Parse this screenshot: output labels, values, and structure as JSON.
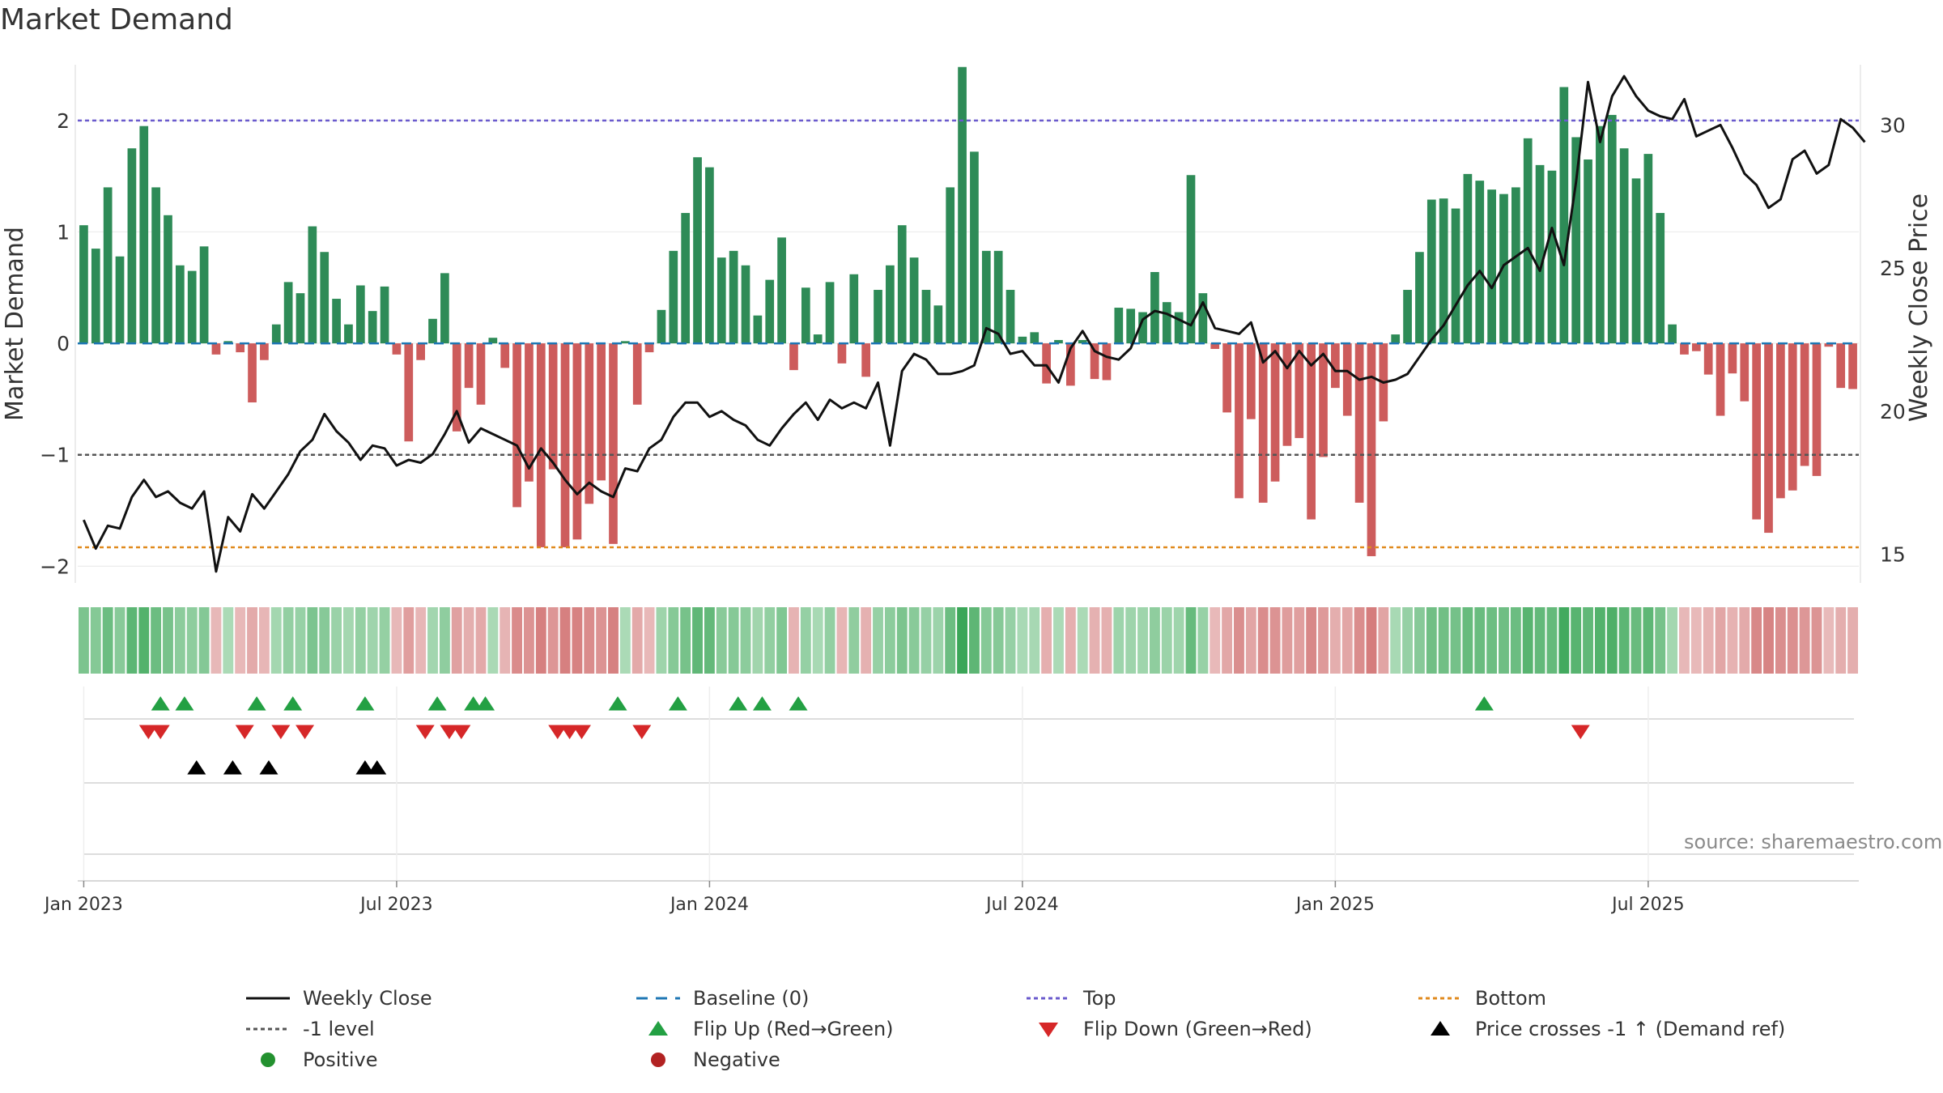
{
  "title": "Market Demand",
  "source": "source: sharemaestro.com",
  "colors": {
    "pos_bar": "#2e8b57",
    "neg_bar": "#cd5c5c",
    "close_line": "#111111",
    "baseline": "#1f77b4",
    "top": "#6a5acd",
    "minus1": "#555555",
    "bottom": "#e08a1e",
    "flip_up": "#23a043",
    "flip_down": "#d62728",
    "cross": "#000000",
    "positive_dot": "#23912f",
    "negative_dot": "#b22222"
  },
  "legend": [
    {
      "label": "Weekly Close",
      "icon": "solid-line-black"
    },
    {
      "label": "Baseline (0)",
      "icon": "dashed-line-blue"
    },
    {
      "label": "Top",
      "icon": "dotted-line-purple"
    },
    {
      "label": "Bottom",
      "icon": "dotted-line-orange"
    },
    {
      "label": "-1 level",
      "icon": "dotted-line-gray"
    },
    {
      "label": "Flip Up (Red→Green)",
      "icon": "triangle-up-green"
    },
    {
      "label": "Flip Down (Green→Red)",
      "icon": "triangle-down-red"
    },
    {
      "label": "Price crosses -1 ↑ (Demand ref)",
      "icon": "triangle-up-black"
    },
    {
      "label": "Positive",
      "icon": "dot-green"
    },
    {
      "label": "Negative",
      "icon": "dot-red"
    }
  ],
  "chart_data": {
    "type": "bar",
    "title": "Market Demand",
    "ylabel": "Market Demand",
    "y2label": "Weekly Close Price",
    "ylim": [
      -2.15,
      2.5
    ],
    "y2lim": [
      14,
      32.1
    ],
    "yticks": [
      "2",
      "1",
      "0",
      "−1",
      "−2"
    ],
    "y2ticks": [
      "30",
      "25",
      "20",
      "15"
    ],
    "xticks": [
      {
        "label": "Jan 2023",
        "week": 1
      },
      {
        "label": "Jul 2023",
        "week": 27
      },
      {
        "label": "Jan 2024",
        "week": 53
      },
      {
        "label": "Jul 2024",
        "week": 79
      },
      {
        "label": "Jan 2025",
        "week": 105
      },
      {
        "label": "Jul 2025",
        "week": 131
      }
    ],
    "reference_lines": {
      "top": 2.0,
      "minus1": -1.0,
      "bottom": -1.83,
      "baseline": 0
    },
    "demand": [
      1.06,
      0.85,
      1.4,
      0.78,
      1.75,
      1.95,
      1.4,
      1.15,
      0.7,
      0.65,
      0.87,
      -0.1,
      0.02,
      -0.08,
      -0.53,
      -0.15,
      0.17,
      0.55,
      0.45,
      1.05,
      0.82,
      0.4,
      0.17,
      0.52,
      0.29,
      0.51,
      -0.1,
      -0.88,
      -0.15,
      0.22,
      0.63,
      -0.79,
      -0.4,
      -0.55,
      0.05,
      -0.22,
      -1.47,
      -1.24,
      -1.83,
      -1.13,
      -1.83,
      -1.76,
      -1.44,
      -1.23,
      -1.8,
      0.02,
      -0.55,
      -0.08,
      0.3,
      0.83,
      1.17,
      1.67,
      1.58,
      0.77,
      0.83,
      0.7,
      0.25,
      0.57,
      0.95,
      -0.24,
      0.5,
      0.08,
      0.55,
      -0.18,
      0.62,
      -0.3,
      0.48,
      0.7,
      1.06,
      0.77,
      0.48,
      0.34,
      1.4,
      2.48,
      1.72,
      0.83,
      0.83,
      0.48,
      0.06,
      0.1,
      -0.36,
      0.03,
      -0.38,
      0.03,
      -0.32,
      -0.33,
      0.32,
      0.31,
      0.28,
      0.64,
      0.37,
      0.28,
      1.51,
      0.45,
      -0.05,
      -0.62,
      -1.39,
      -0.68,
      -1.43,
      -1.24,
      -0.92,
      -0.85,
      -1.58,
      -1.02,
      -0.4,
      -0.65,
      -1.43,
      -1.91,
      -0.7,
      0.08,
      0.48,
      0.82,
      1.29,
      1.3,
      1.21,
      1.52,
      1.46,
      1.38,
      1.34,
      1.4,
      1.84,
      1.6,
      1.55,
      2.3,
      1.85,
      1.65,
      1.95,
      2.05,
      1.75,
      1.48,
      1.7,
      1.17,
      0.17,
      -0.1,
      -0.07,
      -0.28,
      -0.65,
      -0.27,
      -0.52,
      -1.58,
      -1.7,
      -1.39,
      -1.32,
      -1.1,
      -1.19,
      -0.03,
      -0.4,
      -0.41
    ],
    "close": [
      16.2,
      15.2,
      16.0,
      15.9,
      17.0,
      17.6,
      17.0,
      17.2,
      16.8,
      16.6,
      17.2,
      14.4,
      16.3,
      15.8,
      17.1,
      16.6,
      17.2,
      17.8,
      18.6,
      19.0,
      19.9,
      19.3,
      18.9,
      18.3,
      18.8,
      18.7,
      18.1,
      18.3,
      18.2,
      18.5,
      19.2,
      20.0,
      18.9,
      19.4,
      19.2,
      19.0,
      18.8,
      18.0,
      18.7,
      18.2,
      17.6,
      17.1,
      17.5,
      17.2,
      17.0,
      18.0,
      17.9,
      18.7,
      19.0,
      19.8,
      20.3,
      20.3,
      19.8,
      20.0,
      19.7,
      19.5,
      19.0,
      18.8,
      19.4,
      19.9,
      20.3,
      19.7,
      20.4,
      20.1,
      20.3,
      20.1,
      21.0,
      18.8,
      21.4,
      22.0,
      21.8,
      21.3,
      21.3,
      21.4,
      21.6,
      22.9,
      22.7,
      22.0,
      22.1,
      21.6,
      21.6,
      21.0,
      22.2,
      22.8,
      22.1,
      21.9,
      21.8,
      22.2,
      23.2,
      23.5,
      23.4,
      23.2,
      23.0,
      23.8,
      22.9,
      22.8,
      22.7,
      23.1,
      21.7,
      22.1,
      21.5,
      22.1,
      21.6,
      22.0,
      21.4,
      21.4,
      21.1,
      21.2,
      21.0,
      21.1,
      21.3,
      21.9,
      22.5,
      23.0,
      23.7,
      24.4,
      24.9,
      24.3,
      25.1,
      25.4,
      25.7,
      24.9,
      26.4,
      25.1,
      28.0,
      31.5,
      29.4,
      31.0,
      31.7,
      31.0,
      30.5,
      30.3,
      30.2,
      30.9,
      29.6,
      29.8,
      30.0,
      29.2,
      28.3,
      27.9,
      27.1,
      27.4,
      28.8,
      29.1,
      28.3,
      28.6,
      30.2,
      29.9,
      29.4
    ],
    "flip_up_weeks": [
      7,
      9,
      15,
      18,
      24,
      30,
      33,
      34,
      45,
      50,
      55,
      57,
      60,
      117
    ],
    "flip_down_weeks": [
      6,
      7,
      14,
      17,
      19,
      29,
      31,
      32,
      40,
      41,
      42,
      47,
      125
    ],
    "price_cross_weeks": [
      10,
      13,
      16,
      24,
      25
    ]
  }
}
